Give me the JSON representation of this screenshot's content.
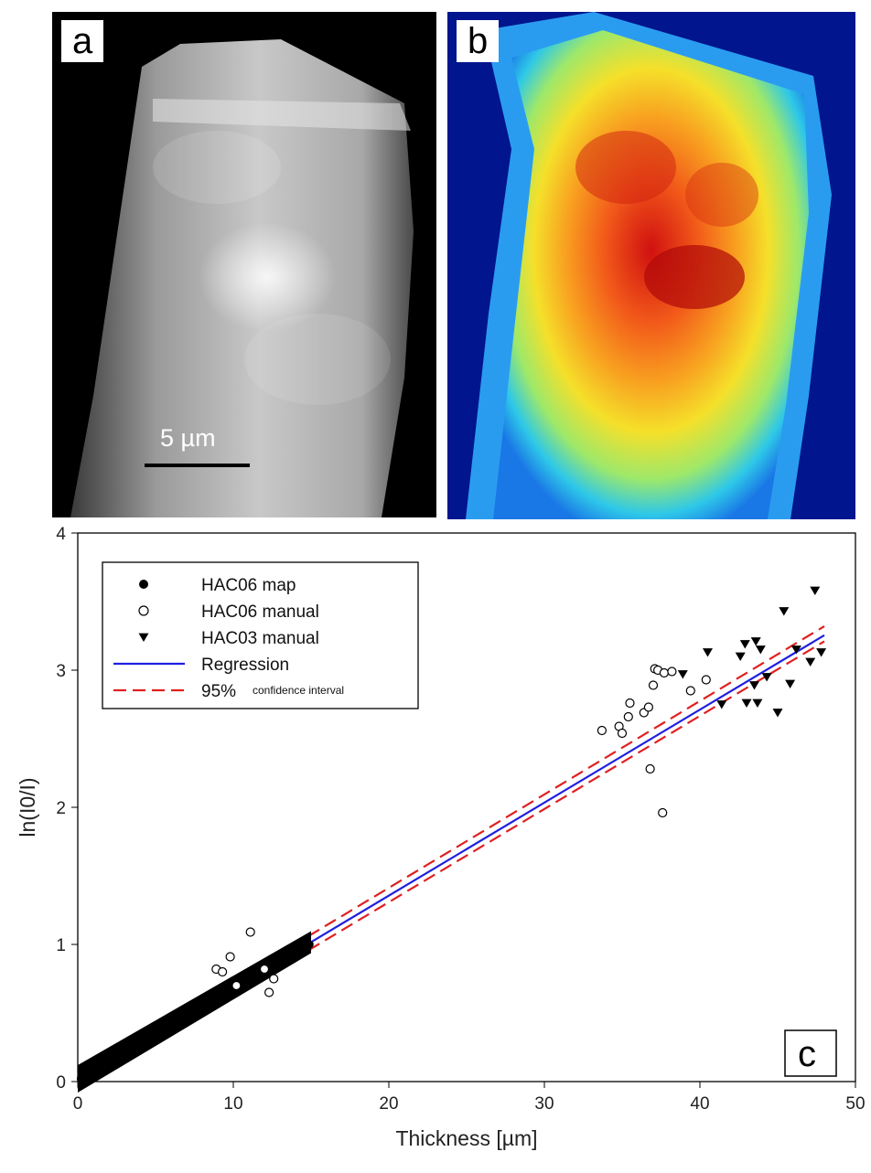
{
  "panel_a": {
    "letter": "a",
    "scale_label": "5 µm"
  },
  "panel_b": {
    "letter": "b"
  },
  "panel_c": {
    "letter": "c"
  },
  "chart_data": {
    "type": "scatter",
    "xlabel": "Thickness [µm]",
    "ylabel": "ln(I0/I)",
    "xlim": [
      0,
      50
    ],
    "ylim": [
      0,
      4
    ],
    "xticks": [
      0,
      10,
      20,
      30,
      40,
      50
    ],
    "yticks": [
      0,
      1,
      2,
      3,
      4
    ],
    "legend_position": "top-left",
    "legend": [
      {
        "label": "HAC06 map",
        "marker": "filled-circle"
      },
      {
        "label": "HAC06 manual",
        "marker": "open-circle"
      },
      {
        "label": "HAC03 manual",
        "marker": "filled-triangle-down"
      },
      {
        "label": "Regression",
        "style": "solid",
        "color": "#1f1fe0"
      },
      {
        "label": "95%",
        "sublabel": "confidence interval",
        "style": "dashed",
        "color": "#e02020"
      }
    ],
    "series": [
      {
        "name": "HAC06 map",
        "marker": "filled-circle",
        "color": "#000000",
        "region": {
          "x_range": [
            0,
            15
          ],
          "trend_slope": 0.0678,
          "trend_intercept": 0.0,
          "y_spread": 0.08
        },
        "x": [
          0.2,
          0.5,
          1.0,
          1.5,
          2.0,
          2.5,
          3.0,
          3.5,
          4.0,
          4.5,
          5.0,
          5.5,
          6.0,
          6.5,
          7.0,
          7.5,
          8.0,
          8.5,
          9.0,
          9.5,
          10.0,
          10.5,
          11.0,
          11.5,
          12.0,
          12.5,
          13.0,
          13.5,
          14.0,
          14.5,
          14.9
        ],
        "y": [
          0.02,
          0.04,
          0.07,
          0.1,
          0.14,
          0.17,
          0.2,
          0.24,
          0.27,
          0.3,
          0.34,
          0.37,
          0.41,
          0.44,
          0.47,
          0.51,
          0.54,
          0.58,
          0.61,
          0.64,
          0.68,
          0.71,
          0.75,
          0.78,
          0.81,
          0.85,
          0.88,
          0.91,
          0.95,
          0.98,
          1.0
        ]
      },
      {
        "name": "HAC06 manual",
        "marker": "open-circle",
        "color": "#000000",
        "x": [
          8.9,
          9.3,
          9.8,
          10.2,
          11.1,
          12.0,
          12.3,
          12.6,
          33.7,
          34.8,
          35.0,
          35.4,
          35.5,
          36.4,
          36.7,
          36.8,
          37.0,
          37.1,
          37.3,
          37.6,
          37.7,
          38.2,
          39.4,
          40.4
        ],
        "y": [
          0.82,
          0.8,
          0.91,
          0.7,
          1.09,
          0.82,
          0.65,
          0.75,
          2.56,
          2.59,
          2.54,
          2.66,
          2.76,
          2.69,
          2.73,
          2.28,
          2.89,
          3.01,
          3.0,
          1.96,
          2.98,
          2.99,
          2.85,
          2.93
        ]
      },
      {
        "name": "HAC03 manual",
        "marker": "filled-triangle-down",
        "color": "#000000",
        "x": [
          38.9,
          40.5,
          41.4,
          42.6,
          42.9,
          43.0,
          43.5,
          43.6,
          43.7,
          43.9,
          44.3,
          45.0,
          45.4,
          45.8,
          46.2,
          47.1,
          47.4,
          47.8
        ],
        "y": [
          2.97,
          3.13,
          2.75,
          3.1,
          3.19,
          2.76,
          2.89,
          3.21,
          2.76,
          3.15,
          2.95,
          2.69,
          3.43,
          2.9,
          3.15,
          3.06,
          3.58,
          3.13
        ]
      }
    ],
    "regression": {
      "slope": 0.0678,
      "intercept": 0.0,
      "x_range": [
        0,
        48
      ]
    },
    "confidence_interval": {
      "lower": {
        "x": [
          0,
          48
        ],
        "y": [
          -0.05,
          3.21
        ]
      },
      "upper": {
        "x": [
          0,
          48
        ],
        "y": [
          0.05,
          3.32
        ]
      }
    }
  }
}
